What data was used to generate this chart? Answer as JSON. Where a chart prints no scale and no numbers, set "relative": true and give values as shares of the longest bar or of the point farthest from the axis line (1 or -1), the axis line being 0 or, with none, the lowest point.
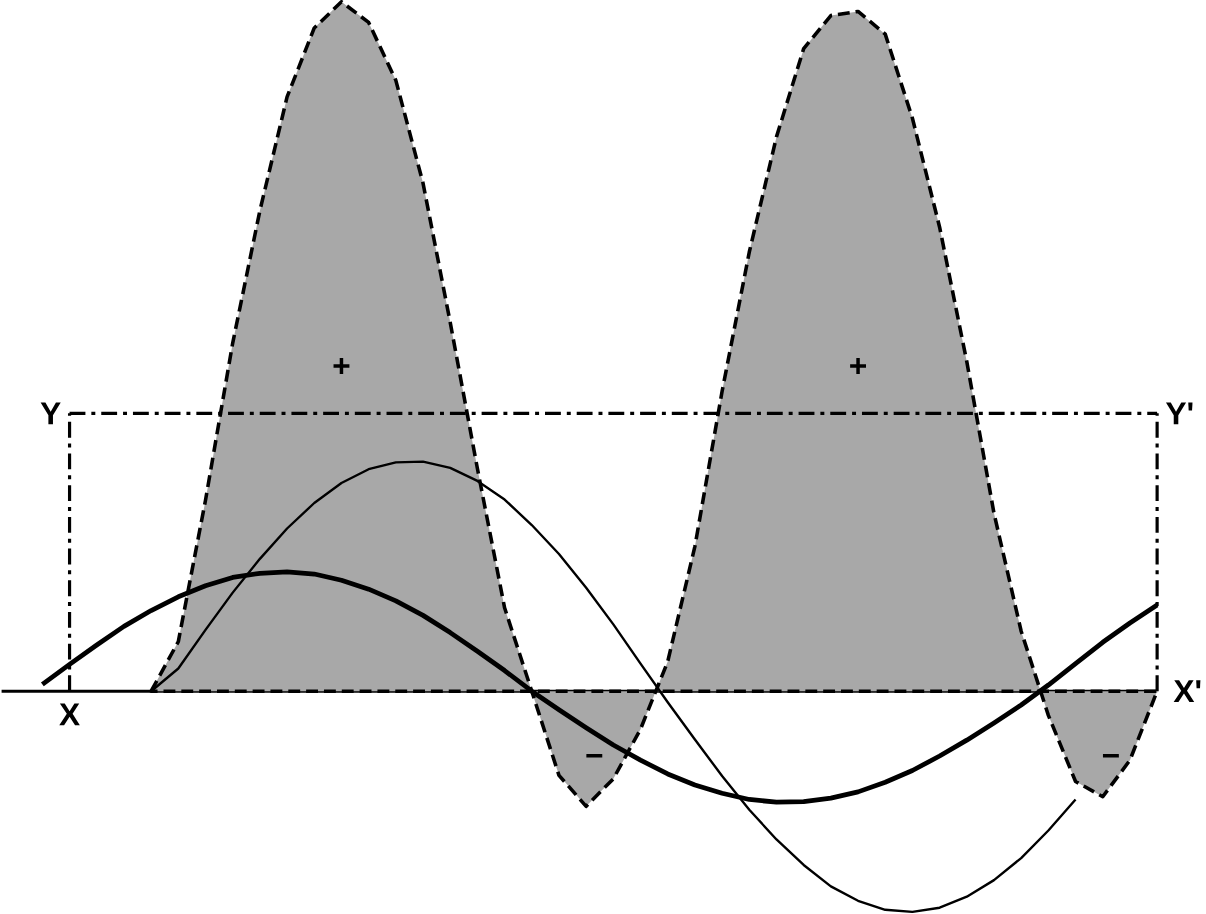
{
  "chart_data": {
    "type": "line",
    "relative": true,
    "categories": [
      null,
      null,
      null,
      null,
      null,
      null,
      null,
      null,
      null,
      null,
      null,
      null,
      null,
      null,
      null,
      null,
      null,
      null,
      null,
      null,
      null,
      null,
      null,
      null,
      null,
      null,
      null,
      null,
      null,
      null,
      null,
      null,
      null,
      null,
      null,
      null,
      null,
      null,
      null,
      null,
      null,
      null,
      null,
      null
    ],
    "series": [
      {
        "type": "area",
        "color": "#a8a8a8",
        "line_style": "dashed",
        "values": [
          null,
          null,
          null,
          null,
          null,
          0,
          0.072,
          0.277,
          0.505,
          0.697,
          0.862,
          0.962,
          1,
          0.97,
          0.886,
          0.737,
          0.535,
          0.323,
          0.121,
          0,
          -0.122,
          -0.167,
          -0.127,
          -0.055,
          0.043,
          0.21,
          0.435,
          0.637,
          0.804,
          0.932,
          0.98,
          0.986,
          0.953,
          0.831,
          0.673,
          0.478,
          0.258,
          0.087,
          -0.035,
          -0.131,
          -0.153,
          -0.1,
          0,
          null
        ]
      },
      {
        "color": "#000000",
        "values": [
          null,
          0.01,
          0.039,
          0.067,
          0.094,
          0.117,
          0.137,
          0.153,
          0.165,
          0.171,
          0.173,
          0.17,
          0.161,
          0.148,
          0.131,
          0.11,
          0.085,
          0.058,
          0.03,
          0,
          -0.027,
          -0.053,
          -0.078,
          -0.1,
          -0.12,
          -0.136,
          -0.148,
          -0.157,
          -0.161,
          -0.16,
          -0.155,
          -0.146,
          -0.132,
          -0.115,
          -0.094,
          -0.071,
          -0.046,
          -0.02,
          0.009,
          0.04,
          0.071,
          0.099,
          0.125,
          null
        ]
      },
      {
        "color": "#000000",
        "values": [
          null,
          null,
          null,
          null,
          null,
          0,
          0.033,
          0.089,
          0.143,
          0.192,
          0.236,
          0.273,
          0.302,
          0.322,
          0.332,
          0.333,
          0.324,
          0.305,
          0.278,
          0.241,
          0.199,
          0.15,
          0.097,
          0.04,
          -0.016,
          -0.07,
          -0.123,
          -0.172,
          -0.215,
          -0.252,
          -0.283,
          -0.304,
          -0.317,
          -0.32,
          -0.314,
          -0.298,
          -0.274,
          -0.242,
          -0.202,
          -0.157,
          null,
          null,
          null,
          null
        ]
      }
    ],
    "ref_lines": [
      {
        "axis": "y",
        "value": 0.403,
        "line_style": "dashed"
      }
    ],
    "annotations": [
      "X",
      "Y",
      "Y'",
      "X'",
      "+",
      "+",
      "−",
      "−"
    ]
  }
}
